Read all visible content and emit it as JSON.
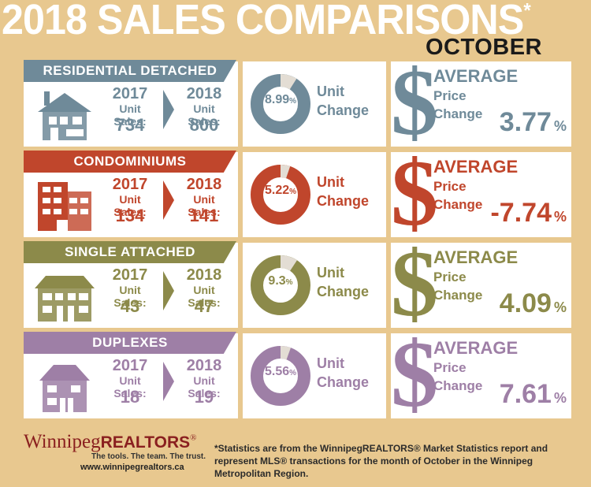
{
  "header": {
    "title": "2018 SALES COMPARISONS",
    "title_mark": "*",
    "month": "OCTOBER"
  },
  "labels": {
    "unit_sales": "Unit Sales:",
    "unit": "Unit",
    "change": "Change",
    "average": "AVERAGE",
    "price": "Price",
    "price_change": "Change",
    "pct_sign": "%",
    "dollar": "$"
  },
  "categories": [
    {
      "name": "RESIDENTIAL DETACHED",
      "color": "#6f8a99",
      "year_a": "2017",
      "sales_a": "734",
      "year_b": "2018",
      "sales_b": "800",
      "unit_change": "8.99",
      "unit_pct_sign": "%",
      "avg_change": "3.77",
      "unit_change_value": 8.99
    },
    {
      "name": "CONDOMINIUMS",
      "color": "#c0462c",
      "year_a": "2017",
      "sales_a": "134",
      "year_b": "2018",
      "sales_b": "141",
      "unit_change": "5.22",
      "unit_pct_sign": "%",
      "avg_change": "-7.74",
      "unit_change_value": 5.22
    },
    {
      "name": "SINGLE ATTACHED",
      "color": "#8c8a4a",
      "year_a": "2017",
      "sales_a": "43",
      "year_b": "2018",
      "sales_b": "47",
      "unit_change": "9.3",
      "unit_pct_sign": "%",
      "avg_change": "4.09",
      "unit_change_value": 9.3
    },
    {
      "name": "DUPLEXES",
      "color": "#9e7fa6",
      "year_a": "2017",
      "sales_a": "18",
      "year_b": "2018",
      "sales_b": "19",
      "unit_change": "5.56",
      "unit_pct_sign": "%",
      "avg_change": "7.61",
      "unit_change_value": 5.56
    }
  ],
  "footer": {
    "logo_a": "Winnipeg",
    "logo_b": "REALTORS",
    "logo_mark": "®",
    "tagline": "The tools. The team. The trust.",
    "url": "www.winnipegrealtors.ca",
    "note": "*Statistics are from the WinnipegREALTORS® Market Statistics report and represent MLS® transactions for the month of October in the Winnipeg Metropolitan Region."
  }
}
